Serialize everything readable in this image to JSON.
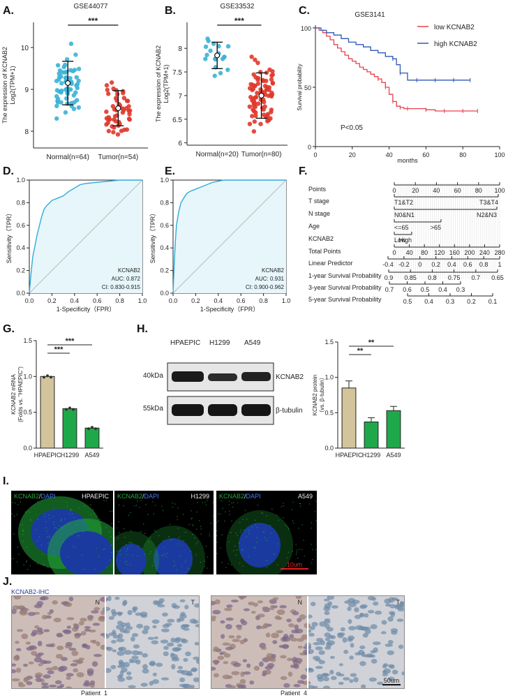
{
  "panel_letters": {
    "A": "A.",
    "B": "B.",
    "C": "C.",
    "D": "D.",
    "E": "E.",
    "F": "F.",
    "G": "G.",
    "H": "H.",
    "I": "I.",
    "J": "J."
  },
  "colors": {
    "normal": "#3bb3d6",
    "tumor": "#e0392b",
    "low": "#e8414a",
    "high": "#2d57b5",
    "roc": "#33a9d8",
    "roc_fill": "#e6f6fb",
    "tan": "#d4c49b",
    "green": "#1fa84a",
    "dapi": "#1a3aa0",
    "kcnab2": "#23a83a",
    "scalebar": "#e02020"
  },
  "chart_data": [
    {
      "type": "scatter",
      "id": "A",
      "title": "GSE44077",
      "ylabel": "The expression of KCNAB2\nLog2(TPM+1)",
      "categories": [
        "Normal(n=64)",
        "Tumor(n=54)"
      ],
      "ylim": [
        7.6,
        10.6
      ],
      "yticks": [
        8,
        9,
        10
      ],
      "means": [
        9.15,
        8.55
      ],
      "sd": [
        0.52,
        0.42
      ],
      "n": [
        64,
        54
      ],
      "significance": "***"
    },
    {
      "type": "scatter",
      "id": "B",
      "title": "GSE33532",
      "ylabel": "The expression of KCNAB2\nLog2(TPM+1)",
      "categories": [
        "Normal(n=20)",
        "Tumor(n=80)"
      ],
      "ylim": [
        5.95,
        8.55
      ],
      "yticks": [
        6.0,
        6.5,
        7.0,
        7.5,
        8.0
      ],
      "means": [
        7.85,
        7.0
      ],
      "sd": [
        0.28,
        0.48
      ],
      "n": [
        20,
        80
      ],
      "significance": "***"
    },
    {
      "type": "line",
      "id": "C",
      "title": "GSE3141",
      "xlabel": "months",
      "ylabel": "Survival probability",
      "xlim": [
        0,
        100
      ],
      "ylim": [
        0,
        100
      ],
      "xticks": [
        0,
        20,
        40,
        60,
        80,
        100
      ],
      "yticks": [
        0,
        50,
        100
      ],
      "annotation": "P<0.05",
      "legend_position": "top-right",
      "series": [
        {
          "name": "low KCNAB2",
          "x": [
            0,
            2,
            4,
            6,
            8,
            10,
            12,
            14,
            16,
            18,
            20,
            22,
            24,
            26,
            28,
            30,
            32,
            34,
            36,
            38,
            40,
            42,
            44,
            46,
            48,
            50,
            55,
            60,
            65,
            70,
            75,
            80,
            85,
            88
          ],
          "y": [
            100,
            98,
            96,
            93,
            90,
            86,
            83,
            80,
            77,
            74,
            72,
            70,
            67,
            65,
            63,
            61,
            59,
            57,
            54,
            50,
            44,
            38,
            34,
            33,
            32,
            32,
            32,
            31,
            30,
            30,
            30,
            30,
            30,
            30
          ]
        },
        {
          "name": "high KCNAB2",
          "x": [
            0,
            3,
            6,
            10,
            14,
            18,
            22,
            26,
            30,
            34,
            38,
            42,
            44,
            46,
            50,
            55,
            60,
            65,
            70,
            75,
            80,
            84
          ],
          "y": [
            100,
            98,
            96,
            94,
            91,
            88,
            86,
            84,
            81,
            79,
            76,
            74,
            69,
            62,
            56,
            56,
            56,
            56,
            56,
            56,
            56,
            56
          ]
        }
      ]
    },
    {
      "type": "line",
      "id": "D",
      "xlabel": "1-Specificity（FPR）",
      "ylabel": "Sensitivity（TPR）",
      "xlim": [
        0,
        1
      ],
      "ylim": [
        0,
        1
      ],
      "xticks": [
        0.0,
        0.2,
        0.4,
        0.6,
        0.8,
        1.0
      ],
      "yticks": [
        0.0,
        0.2,
        0.4,
        0.6,
        0.8,
        1.0
      ],
      "legend_lines": [
        "KCNAB2",
        "AUC: 0.872",
        "CI: 0.830-0.915"
      ],
      "series": [
        {
          "name": "KCNAB2",
          "x": [
            0,
            0.01,
            0.02,
            0.03,
            0.05,
            0.07,
            0.09,
            0.11,
            0.13,
            0.15,
            0.18,
            0.2,
            0.25,
            0.3,
            0.35,
            0.4,
            0.45,
            0.5,
            0.6,
            0.7,
            0.8,
            0.9,
            1.0
          ],
          "y": [
            0,
            0.12,
            0.22,
            0.32,
            0.42,
            0.52,
            0.6,
            0.68,
            0.74,
            0.77,
            0.8,
            0.82,
            0.84,
            0.86,
            0.9,
            0.93,
            0.96,
            0.97,
            0.98,
            0.99,
            1.0,
            1.0,
            1.0
          ]
        }
      ]
    },
    {
      "type": "line",
      "id": "E",
      "xlabel": "1-Specificity（FPR）",
      "ylabel": "Sensitivity（TPR）",
      "xlim": [
        0,
        1
      ],
      "ylim": [
        0,
        1
      ],
      "xticks": [
        0.0,
        0.2,
        0.4,
        0.6,
        0.8,
        1.0
      ],
      "yticks": [
        0.0,
        0.2,
        0.4,
        0.6,
        0.8,
        1.0
      ],
      "legend_lines": [
        "KCNAB2",
        "AUC: 0.931",
        "CI: 0.900-0.962"
      ],
      "series": [
        {
          "name": "KCNAB2",
          "x": [
            0,
            0.01,
            0.02,
            0.03,
            0.05,
            0.07,
            0.1,
            0.12,
            0.15,
            0.2,
            0.25,
            0.3,
            0.35,
            0.4,
            0.45,
            0.5,
            0.6,
            0.7,
            0.8,
            1.0
          ],
          "y": [
            0,
            0.25,
            0.45,
            0.6,
            0.72,
            0.8,
            0.85,
            0.88,
            0.9,
            0.92,
            0.94,
            0.96,
            0.98,
            0.99,
            1.0,
            1.0,
            1.0,
            1.0,
            1.0,
            1.0
          ]
        }
      ]
    },
    {
      "type": "table",
      "id": "F",
      "rows": [
        {
          "label": "Points",
          "ticks": [
            "0",
            "20",
            "40",
            "60",
            "80",
            "100"
          ]
        },
        {
          "label": "T stage",
          "ticks": [
            "T1&T2",
            "T3&T4"
          ]
        },
        {
          "label": "N stage",
          "ticks": [
            "N0&N1",
            "N2&N3"
          ]
        },
        {
          "label": "Age",
          "ticks": [
            "<=65",
            ">65"
          ]
        },
        {
          "label": "KCNAB2",
          "ticks": [
            "Low",
            "High"
          ]
        },
        {
          "label": "Total Points",
          "ticks": [
            "0",
            "40",
            "80",
            "120",
            "160",
            "200",
            "240",
            "280"
          ]
        },
        {
          "label": "Linear Predictor",
          "ticks": [
            "-0.4",
            "-0.2",
            "0",
            "0.2",
            "0.4",
            "0.6",
            "0.8",
            "1"
          ]
        },
        {
          "label": "1-year Survival Probability",
          "ticks": [
            "0.9",
            "0.85",
            "0.8",
            "0.75",
            "0.7",
            "0.65"
          ]
        },
        {
          "label": "3-year Survival Probability",
          "ticks": [
            "0.7",
            "0.6",
            "0.5",
            "0.4",
            "0.3"
          ]
        },
        {
          "label": "5-year Survival Probability",
          "ticks": [
            "0.5",
            "0.4",
            "0.3",
            "0.2",
            "0.1"
          ]
        }
      ]
    },
    {
      "type": "bar",
      "id": "G",
      "ylabel": "KCNAB2 mRNA\n(Folds vs. \"HPAEPIC\")",
      "categories": [
        "HPAEPIC",
        "H1299",
        "A549"
      ],
      "values": [
        1.0,
        0.55,
        0.28
      ],
      "ylim": [
        0,
        1.5
      ],
      "yticks": [
        0.0,
        0.5,
        1.0,
        1.5
      ],
      "significance": [
        "***",
        "***"
      ]
    },
    {
      "type": "bar",
      "id": "H",
      "ylabel": "KCNAB2 protein\n（vs. β-tubulin）",
      "categories": [
        "HPAEPIC",
        "H1299",
        "A549"
      ],
      "values": [
        0.85,
        0.37,
        0.53
      ],
      "errors": [
        0.1,
        0.06,
        0.06
      ],
      "ylim": [
        0,
        1.5
      ],
      "yticks": [
        0.0,
        0.5,
        1.0,
        1.5
      ],
      "significance": [
        "**",
        "**"
      ]
    }
  ],
  "blot": {
    "lanes": [
      "HPAEPIC",
      "H1299",
      "A549"
    ],
    "mw": [
      "40kDa",
      "55kDa"
    ],
    "proteins": [
      "KCNAB2",
      "β-tubulin"
    ]
  },
  "micro": {
    "stain_green": "KCNAB2",
    "stain_sep": "/",
    "stain_blue": "DAPI",
    "cells": [
      "HPAEPIC",
      "H1299",
      "A549"
    ],
    "scalebar": "10um"
  },
  "ihc": {
    "title": "KCNAB2-IHC",
    "normal_mark": "N",
    "tumor_mark": "T",
    "patients": [
      "Patient  1",
      "Patient  4"
    ],
    "scalebar": "50um"
  }
}
